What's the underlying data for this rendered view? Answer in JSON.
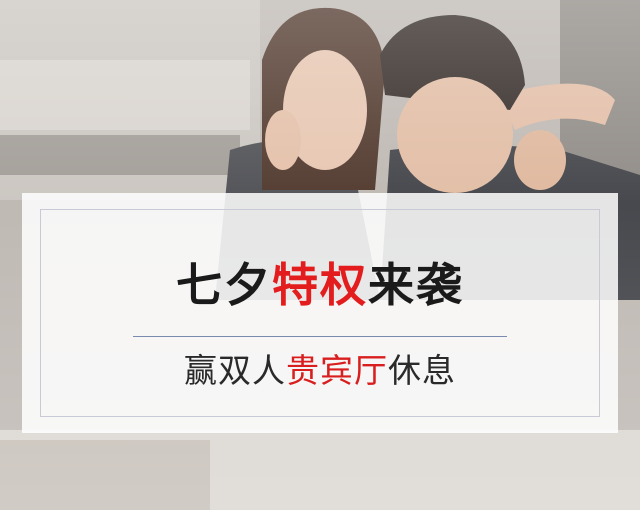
{
  "banner": {
    "headline": {
      "lead": "七夕",
      "highlight": "特权",
      "trail": "来袭"
    },
    "subline": {
      "lead": "赢双人",
      "highlight": "贵宾厅",
      "trail": "休息"
    }
  },
  "colors": {
    "accent": "#e31d1d",
    "text": "#1a1a1a",
    "rule": "#7b8bb0",
    "frame": "#c8cad8"
  }
}
